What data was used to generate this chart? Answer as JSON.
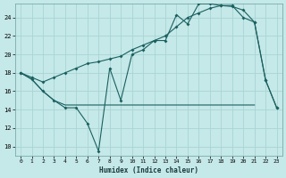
{
  "xlabel": "Humidex (Indice chaleur)",
  "background_color": "#c5e8e8",
  "grid_color": "#aad4d4",
  "line_color": "#1a6060",
  "xlim": [
    -0.5,
    23.5
  ],
  "ylim": [
    9,
    25.5
  ],
  "yticks": [
    10,
    12,
    14,
    16,
    18,
    20,
    22,
    24
  ],
  "xticks": [
    0,
    1,
    2,
    3,
    4,
    5,
    6,
    7,
    8,
    9,
    10,
    11,
    12,
    13,
    14,
    15,
    16,
    17,
    18,
    19,
    20,
    21,
    22,
    23
  ],
  "series1_x": [
    0,
    1,
    2,
    3,
    4,
    5,
    6,
    7,
    8,
    9,
    10,
    11,
    12,
    13,
    14,
    15,
    16,
    17,
    18,
    19,
    20,
    21,
    22,
    23
  ],
  "series1_y": [
    18.0,
    17.3,
    16.0,
    15.0,
    14.2,
    14.2,
    12.5,
    9.5,
    18.5,
    15.0,
    20.0,
    20.5,
    21.5,
    21.5,
    24.3,
    23.3,
    25.5,
    25.5,
    25.3,
    25.3,
    24.0,
    23.5,
    17.2,
    14.2
  ],
  "series2_x": [
    0,
    1,
    2,
    3,
    4,
    5,
    6,
    7,
    8,
    9,
    10,
    11,
    12,
    13,
    14,
    15,
    16,
    17,
    18,
    19,
    20,
    21,
    22,
    23
  ],
  "series2_y": [
    18.0,
    17.3,
    16.0,
    15.0,
    14.5,
    14.5,
    14.5,
    14.5,
    14.5,
    14.5,
    14.5,
    14.5,
    14.5,
    14.5,
    14.5,
    14.5,
    14.5,
    14.5,
    14.5,
    14.5,
    14.5,
    14.5,
    null,
    null
  ],
  "series3_x": [
    0,
    1,
    2,
    3,
    4,
    5,
    6,
    7,
    8,
    9,
    10,
    11,
    12,
    13,
    14,
    15,
    16,
    17,
    18,
    19,
    20,
    21,
    22,
    23
  ],
  "series3_y": [
    18.0,
    17.5,
    17.0,
    17.5,
    18.0,
    18.5,
    19.0,
    19.2,
    19.5,
    19.8,
    20.5,
    21.0,
    21.5,
    22.0,
    23.0,
    24.0,
    24.5,
    25.0,
    25.3,
    25.2,
    24.8,
    23.5,
    17.2,
    14.2
  ]
}
